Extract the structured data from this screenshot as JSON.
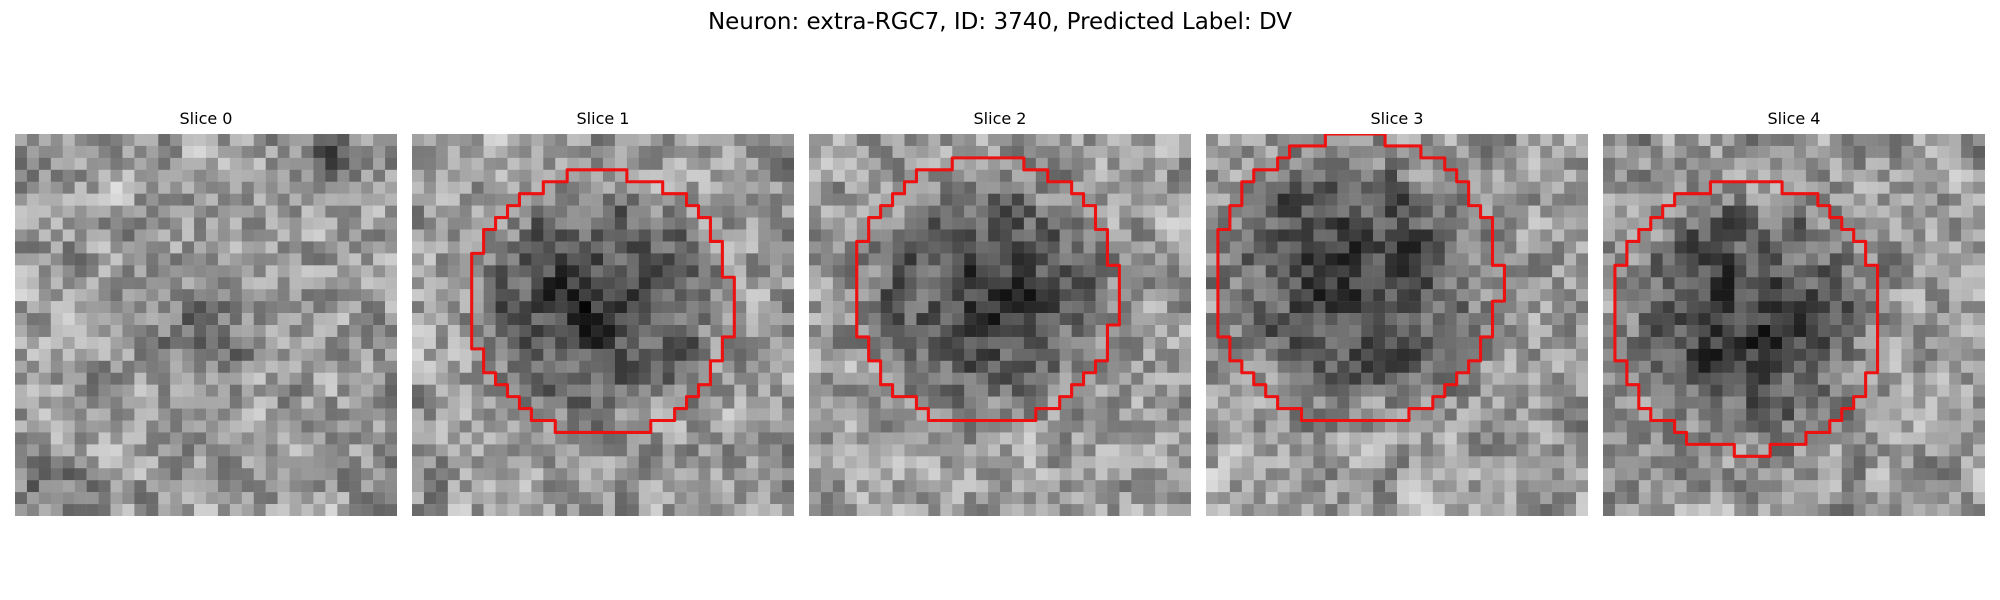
{
  "figure": {
    "title": "Neuron: extra-RGC7, ID: 3740, Predicted Label: DV"
  },
  "style": {
    "contour_color": "#ee1111"
  },
  "slices": [
    {
      "title": "Slice 0",
      "has_contour": false,
      "mask": null
    },
    {
      "title": "Slice 1",
      "has_contour": true,
      "mask": {
        "cx": 15.8,
        "cy": 14.2,
        "rx": 11.0,
        "ry": 11.0
      }
    },
    {
      "title": "Slice 2",
      "has_contour": true,
      "mask": {
        "cx": 14.8,
        "cy": 13.3,
        "rx": 11.0,
        "ry": 11.2
      }
    },
    {
      "title": "Slice 3",
      "has_contour": true,
      "mask": {
        "cx": 12.6,
        "cy": 12.3,
        "rx": 12.0,
        "ry": 12.0
      }
    },
    {
      "title": "Slice 4",
      "has_contour": true,
      "mask": {
        "cx": 12.1,
        "cy": 15.3,
        "rx": 11.3,
        "ry": 11.3
      }
    }
  ]
}
